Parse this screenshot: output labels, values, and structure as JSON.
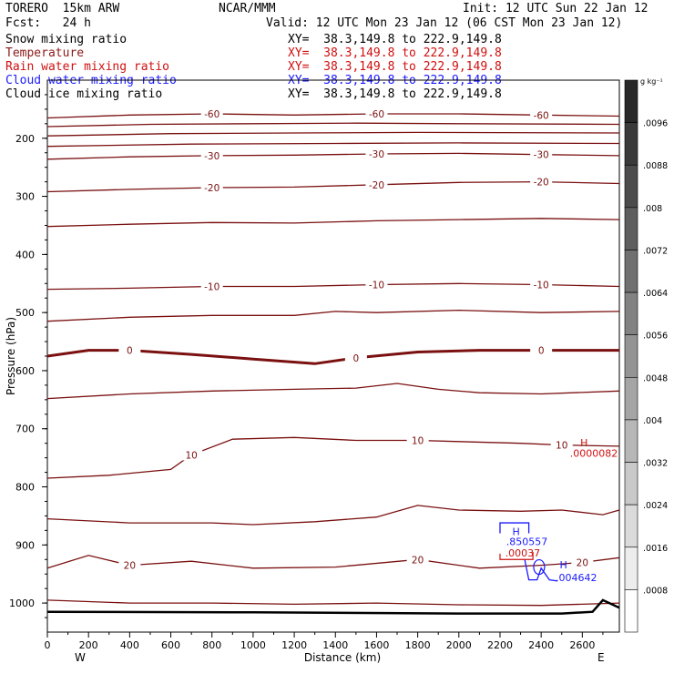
{
  "header": {
    "model": "TORERO  15km ARW",
    "org": "NCAR/MMM",
    "init": "Init: 12 UTC Sun 22 Jan 12",
    "fcst": "Fcst:   24 h",
    "valid": "Valid: 12 UTC Mon 23 Jan 12 (06 CST Mon 23 Jan 12)"
  },
  "legend": [
    {
      "name": "Snow mixing ratio",
      "xy": "XY=  38.3,149.8 to 222.9,149.8",
      "color": "#000000"
    },
    {
      "name": "Temperature",
      "xy": "XY=  38.3,149.8 to 222.9,149.8",
      "color": "#8b1a1a"
    },
    {
      "name": "Rain water mixing ratio",
      "xy": "XY=  38.3,149.8 to 222.9,149.8",
      "color": "#d01010"
    },
    {
      "name": "Cloud water mixing ratio",
      "xy": "XY=  38.3,149.8 to 222.9,149.8",
      "color": "#1a1aff"
    },
    {
      "name": "Cloud ice mixing ratio",
      "xy": "XY=  38.3,149.8 to 222.9,149.8",
      "color": "#000000"
    }
  ],
  "chart_data": {
    "type": "line",
    "xlabel": "Distance (km)",
    "ylabel": "Pressure (hPa)",
    "xlim": [
      0,
      2780
    ],
    "ylim": [
      1050,
      100
    ],
    "x_ticks": [
      0,
      200,
      400,
      600,
      800,
      1000,
      1200,
      1400,
      1600,
      1800,
      2000,
      2200,
      2400,
      2600
    ],
    "y_ticks": [
      200,
      300,
      400,
      500,
      600,
      700,
      800,
      900,
      1000
    ],
    "x_end_labels": {
      "left": "W",
      "right": "E"
    },
    "temperature_contours": [
      {
        "label": "-60",
        "points": [
          [
            0,
            165
          ],
          [
            400,
            160
          ],
          [
            800,
            158
          ],
          [
            1200,
            160
          ],
          [
            1600,
            158
          ],
          [
            2000,
            158
          ],
          [
            2400,
            160
          ],
          [
            2780,
            162
          ]
        ]
      },
      {
        "label": "",
        "points": [
          [
            0,
            180
          ],
          [
            500,
            176
          ],
          [
            1000,
            175
          ],
          [
            1500,
            174
          ],
          [
            2000,
            175
          ],
          [
            2780,
            176
          ]
        ]
      },
      {
        "label": "",
        "points": [
          [
            0,
            196
          ],
          [
            600,
            192
          ],
          [
            1200,
            191
          ],
          [
            1800,
            190
          ],
          [
            2780,
            191
          ]
        ]
      },
      {
        "label": "",
        "points": [
          [
            0,
            214
          ],
          [
            700,
            210
          ],
          [
            1400,
            209
          ],
          [
            2000,
            208
          ],
          [
            2780,
            209
          ]
        ]
      },
      {
        "label": "-30",
        "points": [
          [
            0,
            236
          ],
          [
            400,
            232
          ],
          [
            800,
            230
          ],
          [
            1200,
            229
          ],
          [
            1600,
            227
          ],
          [
            2000,
            226
          ],
          [
            2400,
            228
          ],
          [
            2780,
            230
          ]
        ]
      },
      {
        "label": "-20",
        "points": [
          [
            0,
            292
          ],
          [
            400,
            288
          ],
          [
            800,
            285
          ],
          [
            1200,
            284
          ],
          [
            1600,
            280
          ],
          [
            2000,
            276
          ],
          [
            2400,
            275
          ],
          [
            2780,
            278
          ]
        ]
      },
      {
        "label": "",
        "points": [
          [
            0,
            352
          ],
          [
            400,
            348
          ],
          [
            800,
            345
          ],
          [
            1200,
            346
          ],
          [
            1600,
            342
          ],
          [
            2000,
            340
          ],
          [
            2400,
            338
          ],
          [
            2780,
            340
          ]
        ]
      },
      {
        "label": "-10",
        "points": [
          [
            0,
            460
          ],
          [
            400,
            458
          ],
          [
            800,
            455
          ],
          [
            1200,
            455
          ],
          [
            1600,
            452
          ],
          [
            2000,
            450
          ],
          [
            2400,
            452
          ],
          [
            2780,
            455
          ]
        ]
      },
      {
        "label": "",
        "points": [
          [
            0,
            515
          ],
          [
            400,
            508
          ],
          [
            800,
            505
          ],
          [
            1200,
            505
          ],
          [
            1400,
            498
          ],
          [
            1600,
            500
          ],
          [
            2000,
            496
          ],
          [
            2400,
            500
          ],
          [
            2780,
            498
          ]
        ]
      },
      {
        "label": "0",
        "points": [
          [
            0,
            575
          ],
          [
            200,
            565
          ],
          [
            400,
            565
          ],
          [
            700,
            572
          ],
          [
            1000,
            580
          ],
          [
            1300,
            588
          ],
          [
            1500,
            578
          ],
          [
            1800,
            568
          ],
          [
            2100,
            565
          ],
          [
            2400,
            565
          ],
          [
            2780,
            565
          ]
        ],
        "bold": true
      },
      {
        "label": "",
        "points": [
          [
            0,
            648
          ],
          [
            400,
            640
          ],
          [
            800,
            635
          ],
          [
            1200,
            632
          ],
          [
            1500,
            630
          ],
          [
            1700,
            622
          ],
          [
            1900,
            632
          ],
          [
            2100,
            638
          ],
          [
            2400,
            640
          ],
          [
            2780,
            635
          ]
        ]
      },
      {
        "label": "10",
        "points": [
          [
            0,
            785
          ],
          [
            300,
            780
          ],
          [
            600,
            770
          ],
          [
            700,
            745
          ],
          [
            900,
            718
          ],
          [
            1200,
            715
          ],
          [
            1500,
            720
          ],
          [
            1800,
            720
          ],
          [
            2000,
            722
          ],
          [
            2300,
            725
          ],
          [
            2500,
            728
          ],
          [
            2780,
            730
          ]
        ]
      },
      {
        "label": "",
        "points": [
          [
            0,
            855
          ],
          [
            400,
            862
          ],
          [
            800,
            862
          ],
          [
            1000,
            865
          ],
          [
            1300,
            860
          ],
          [
            1600,
            852
          ],
          [
            1800,
            832
          ],
          [
            2000,
            840
          ],
          [
            2300,
            842
          ],
          [
            2500,
            840
          ],
          [
            2700,
            848
          ],
          [
            2780,
            840
          ]
        ]
      },
      {
        "label": "20",
        "points": [
          [
            0,
            940
          ],
          [
            200,
            918
          ],
          [
            400,
            935
          ],
          [
            700,
            928
          ],
          [
            1000,
            940
          ],
          [
            1400,
            938
          ],
          [
            1800,
            925
          ],
          [
            2100,
            940
          ],
          [
            2400,
            935
          ],
          [
            2600,
            930
          ],
          [
            2780,
            922
          ]
        ]
      },
      {
        "label": "",
        "points": [
          [
            0,
            995
          ],
          [
            400,
            1000
          ],
          [
            800,
            1000
          ],
          [
            1200,
            1002
          ],
          [
            1600,
            1000
          ],
          [
            2000,
            1003
          ],
          [
            2400,
            1004
          ],
          [
            2780,
            1000
          ]
        ]
      }
    ],
    "terrain": [
      [
        0,
        1015
      ],
      [
        1000,
        1016
      ],
      [
        2000,
        1018
      ],
      [
        2500,
        1018
      ],
      [
        2650,
        1015
      ],
      [
        2700,
        995
      ],
      [
        2780,
        1008
      ]
    ],
    "annotations": [
      {
        "text": "H",
        "x": 2590,
        "y": 730,
        "color": "#d01010"
      },
      {
        "text": ".0000082",
        "x": 2540,
        "y": 748,
        "color": "#d01010"
      },
      {
        "text": "H",
        "x": 2260,
        "y": 883,
        "color": "#1a1aff"
      },
      {
        "text": ".850557",
        "x": 2230,
        "y": 900,
        "color": "#1a1aff"
      },
      {
        "text": ".00037",
        "x": 2225,
        "y": 920,
        "color": "#d01010"
      },
      {
        "text": "H",
        "x": 2490,
        "y": 940,
        "color": "#1a1aff"
      },
      {
        "text": ".004642",
        "x": 2470,
        "y": 962,
        "color": "#1a1aff"
      }
    ],
    "colorbar": {
      "unit": "g kg⁻¹",
      "labels": [
        ".0096",
        ".0088",
        ".008",
        ".0072",
        ".0064",
        ".0056",
        ".0048",
        ".004",
        ".0032",
        ".0024",
        ".0016",
        ".0008"
      ]
    }
  }
}
